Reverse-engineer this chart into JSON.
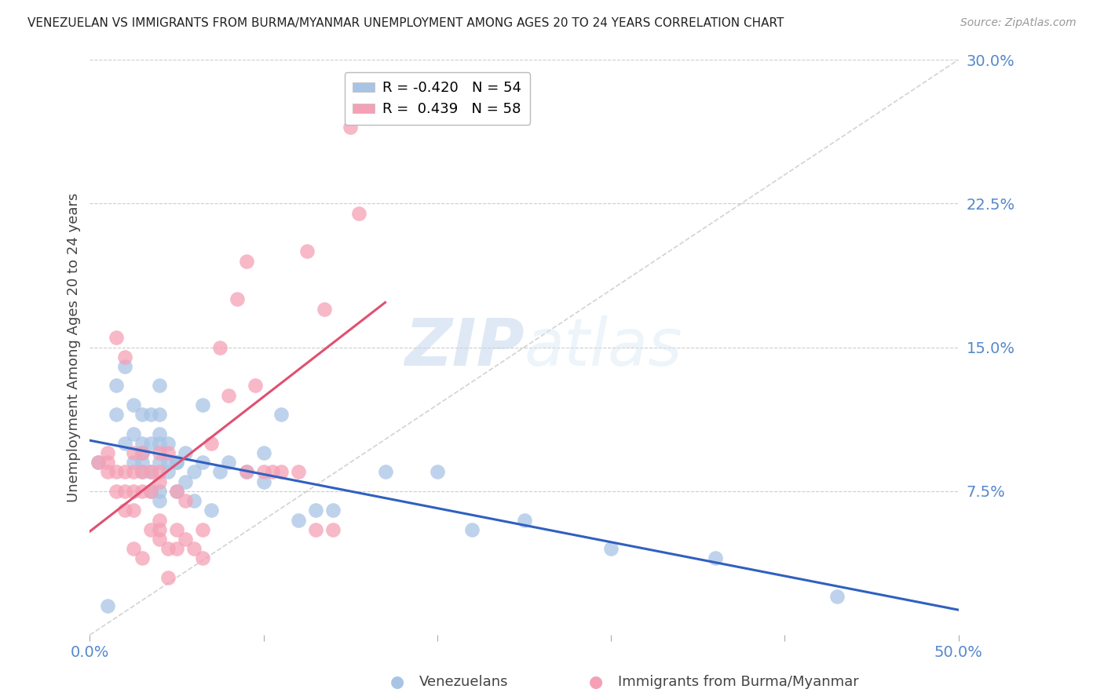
{
  "title": "VENEZUELAN VS IMMIGRANTS FROM BURMA/MYANMAR UNEMPLOYMENT AMONG AGES 20 TO 24 YEARS CORRELATION CHART",
  "source": "Source: ZipAtlas.com",
  "ylabel": "Unemployment Among Ages 20 to 24 years",
  "xlim": [
    0.0,
    0.5
  ],
  "ylim": [
    0.0,
    0.3
  ],
  "yticks_right": [
    0.075,
    0.15,
    0.225,
    0.3
  ],
  "yticklabels_right": [
    "7.5%",
    "15.0%",
    "22.5%",
    "30.0%"
  ],
  "watermark_zip": "ZIP",
  "watermark_atlas": "atlas",
  "legend_R_blue": "-0.420",
  "legend_N_blue": "54",
  "legend_R_pink": " 0.439",
  "legend_N_pink": "58",
  "blue_color": "#A8C4E5",
  "pink_color": "#F5A0B5",
  "blue_line_color": "#3060C0",
  "pink_line_color": "#E05070",
  "diagonal_color": "#C8C8C8",
  "grid_color": "#CCCCCC",
  "axis_label_color": "#5588CC",
  "venezuelans_x": [
    0.005,
    0.01,
    0.015,
    0.015,
    0.02,
    0.02,
    0.025,
    0.025,
    0.025,
    0.03,
    0.03,
    0.03,
    0.03,
    0.03,
    0.035,
    0.035,
    0.035,
    0.035,
    0.04,
    0.04,
    0.04,
    0.04,
    0.04,
    0.04,
    0.04,
    0.045,
    0.045,
    0.045,
    0.05,
    0.05,
    0.05,
    0.055,
    0.055,
    0.06,
    0.06,
    0.065,
    0.065,
    0.07,
    0.075,
    0.08,
    0.09,
    0.1,
    0.1,
    0.11,
    0.12,
    0.13,
    0.14,
    0.17,
    0.2,
    0.22,
    0.25,
    0.3,
    0.36,
    0.43
  ],
  "venezuelans_y": [
    0.09,
    0.015,
    0.115,
    0.13,
    0.1,
    0.14,
    0.09,
    0.105,
    0.12,
    0.085,
    0.09,
    0.095,
    0.1,
    0.115,
    0.075,
    0.085,
    0.1,
    0.115,
    0.07,
    0.075,
    0.09,
    0.1,
    0.105,
    0.115,
    0.13,
    0.085,
    0.09,
    0.1,
    0.075,
    0.09,
    0.09,
    0.08,
    0.095,
    0.07,
    0.085,
    0.09,
    0.12,
    0.065,
    0.085,
    0.09,
    0.085,
    0.08,
    0.095,
    0.115,
    0.06,
    0.065,
    0.065,
    0.085,
    0.085,
    0.055,
    0.06,
    0.045,
    0.04,
    0.02
  ],
  "burma_x": [
    0.005,
    0.01,
    0.01,
    0.01,
    0.015,
    0.015,
    0.015,
    0.02,
    0.02,
    0.02,
    0.02,
    0.025,
    0.025,
    0.025,
    0.025,
    0.025,
    0.03,
    0.03,
    0.03,
    0.03,
    0.035,
    0.035,
    0.035,
    0.04,
    0.04,
    0.04,
    0.04,
    0.04,
    0.04,
    0.045,
    0.045,
    0.045,
    0.05,
    0.05,
    0.05,
    0.055,
    0.055,
    0.06,
    0.065,
    0.065,
    0.07,
    0.075,
    0.08,
    0.085,
    0.09,
    0.09,
    0.095,
    0.1,
    0.105,
    0.11,
    0.12,
    0.125,
    0.13,
    0.135,
    0.14,
    0.15,
    0.155,
    0.16
  ],
  "burma_y": [
    0.09,
    0.085,
    0.09,
    0.095,
    0.075,
    0.085,
    0.155,
    0.065,
    0.075,
    0.085,
    0.145,
    0.045,
    0.065,
    0.075,
    0.085,
    0.095,
    0.04,
    0.075,
    0.085,
    0.095,
    0.055,
    0.075,
    0.085,
    0.05,
    0.055,
    0.06,
    0.08,
    0.085,
    0.095,
    0.03,
    0.045,
    0.095,
    0.045,
    0.055,
    0.075,
    0.05,
    0.07,
    0.045,
    0.04,
    0.055,
    0.1,
    0.15,
    0.125,
    0.175,
    0.085,
    0.195,
    0.13,
    0.085,
    0.085,
    0.085,
    0.085,
    0.2,
    0.055,
    0.17,
    0.055,
    0.265,
    0.22,
    0.27
  ]
}
